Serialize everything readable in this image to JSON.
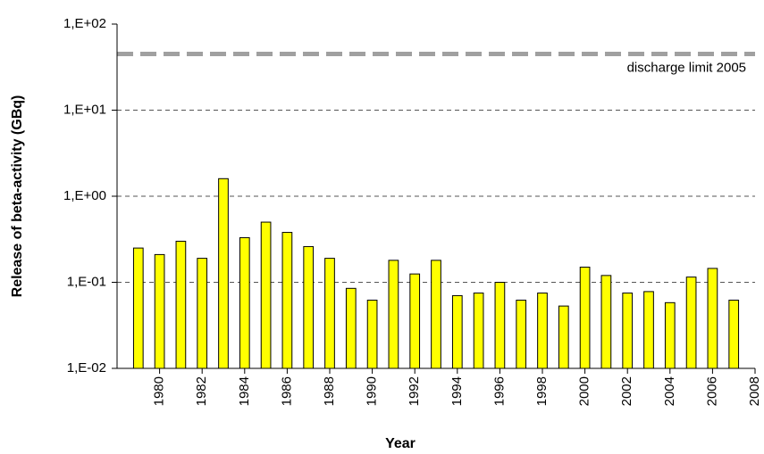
{
  "chart_data": {
    "type": "bar",
    "x_label": "Year",
    "y_label": "Release of beta-activity (GBq)",
    "x": [
      1979,
      1980,
      1981,
      1982,
      1983,
      1984,
      1985,
      1986,
      1987,
      1988,
      1989,
      1990,
      1991,
      1992,
      1993,
      1994,
      1995,
      1996,
      1997,
      1998,
      1999,
      2000,
      2001,
      2002,
      2003,
      2004,
      2005,
      2006,
      2007
    ],
    "values": [
      0.25,
      0.21,
      0.3,
      0.19,
      1.6,
      0.33,
      0.5,
      0.38,
      0.26,
      0.19,
      0.085,
      0.062,
      0.18,
      0.125,
      0.18,
      0.07,
      0.075,
      0.1,
      0.062,
      0.075,
      0.053,
      0.15,
      0.12,
      0.075,
      0.078,
      0.058,
      0.115,
      0.145,
      0.062
    ],
    "color": "#ffff00",
    "xlim": [
      1978,
      2008
    ],
    "xticks": [
      1980,
      1982,
      1984,
      1986,
      1988,
      1990,
      1992,
      1994,
      1996,
      1998,
      2000,
      2002,
      2004,
      2006,
      2008
    ],
    "ylim": [
      0.01,
      100
    ],
    "y_scale": "log",
    "yticks": [
      {
        "value": 0.01,
        "label": "1,E-02"
      },
      {
        "value": 0.1,
        "label": "1,E-01"
      },
      {
        "value": 1,
        "label": "1,E+00"
      },
      {
        "value": 10,
        "label": "1,E+01"
      },
      {
        "value": 100,
        "label": "1,E+02"
      }
    ],
    "grid": true,
    "reference_line": {
      "value": 45,
      "label": "discharge limit 2005",
      "color": "#a0a0a0"
    }
  }
}
